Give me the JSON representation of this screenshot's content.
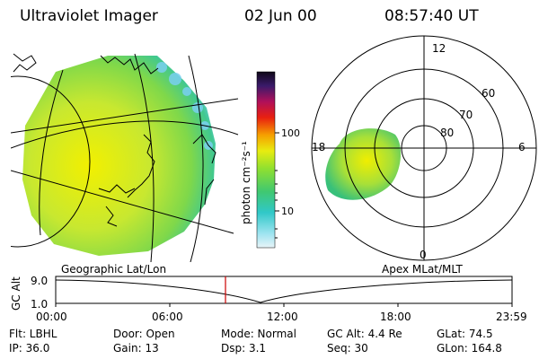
{
  "header": {
    "title": "Ultraviolet Imager",
    "date": "02 Jun 00",
    "time": "08:57:40 UT"
  },
  "colorbar": {
    "label": "photon cm⁻²s⁻¹",
    "ticks": [
      "100",
      "10"
    ]
  },
  "polar": {
    "lat_labels": [
      "60",
      "70",
      "80"
    ],
    "mlt_labels": [
      "12",
      "18",
      "6",
      "0"
    ]
  },
  "panel_labels": {
    "left": "Geographic Lat/Lon",
    "right": "Apex MLat/MLT"
  },
  "altitude_plot": {
    "ylabel": "GC Alt",
    "y_ticks": [
      "9.0",
      "1.0"
    ],
    "x_ticks": [
      "00:00",
      "06:00",
      "12:00",
      "18:00",
      "23:59"
    ],
    "current_time_marker": "08:57:40"
  },
  "info": {
    "row1": {
      "flt": "Flt: LBHL",
      "door": "Door: Open",
      "mode": "Mode: Normal",
      "gc_alt": "GC Alt: 4.4 Re",
      "glat": "GLat:  74.5"
    },
    "row2": {
      "ip": "IP: 36.0",
      "gain": "Gain: 13",
      "dsp": "Dsp:    3.1",
      "seq": "Seq: 30",
      "glon": "GLon: 164.8"
    }
  },
  "colors": {
    "marker": "#cc0000",
    "grid": "#000000"
  }
}
